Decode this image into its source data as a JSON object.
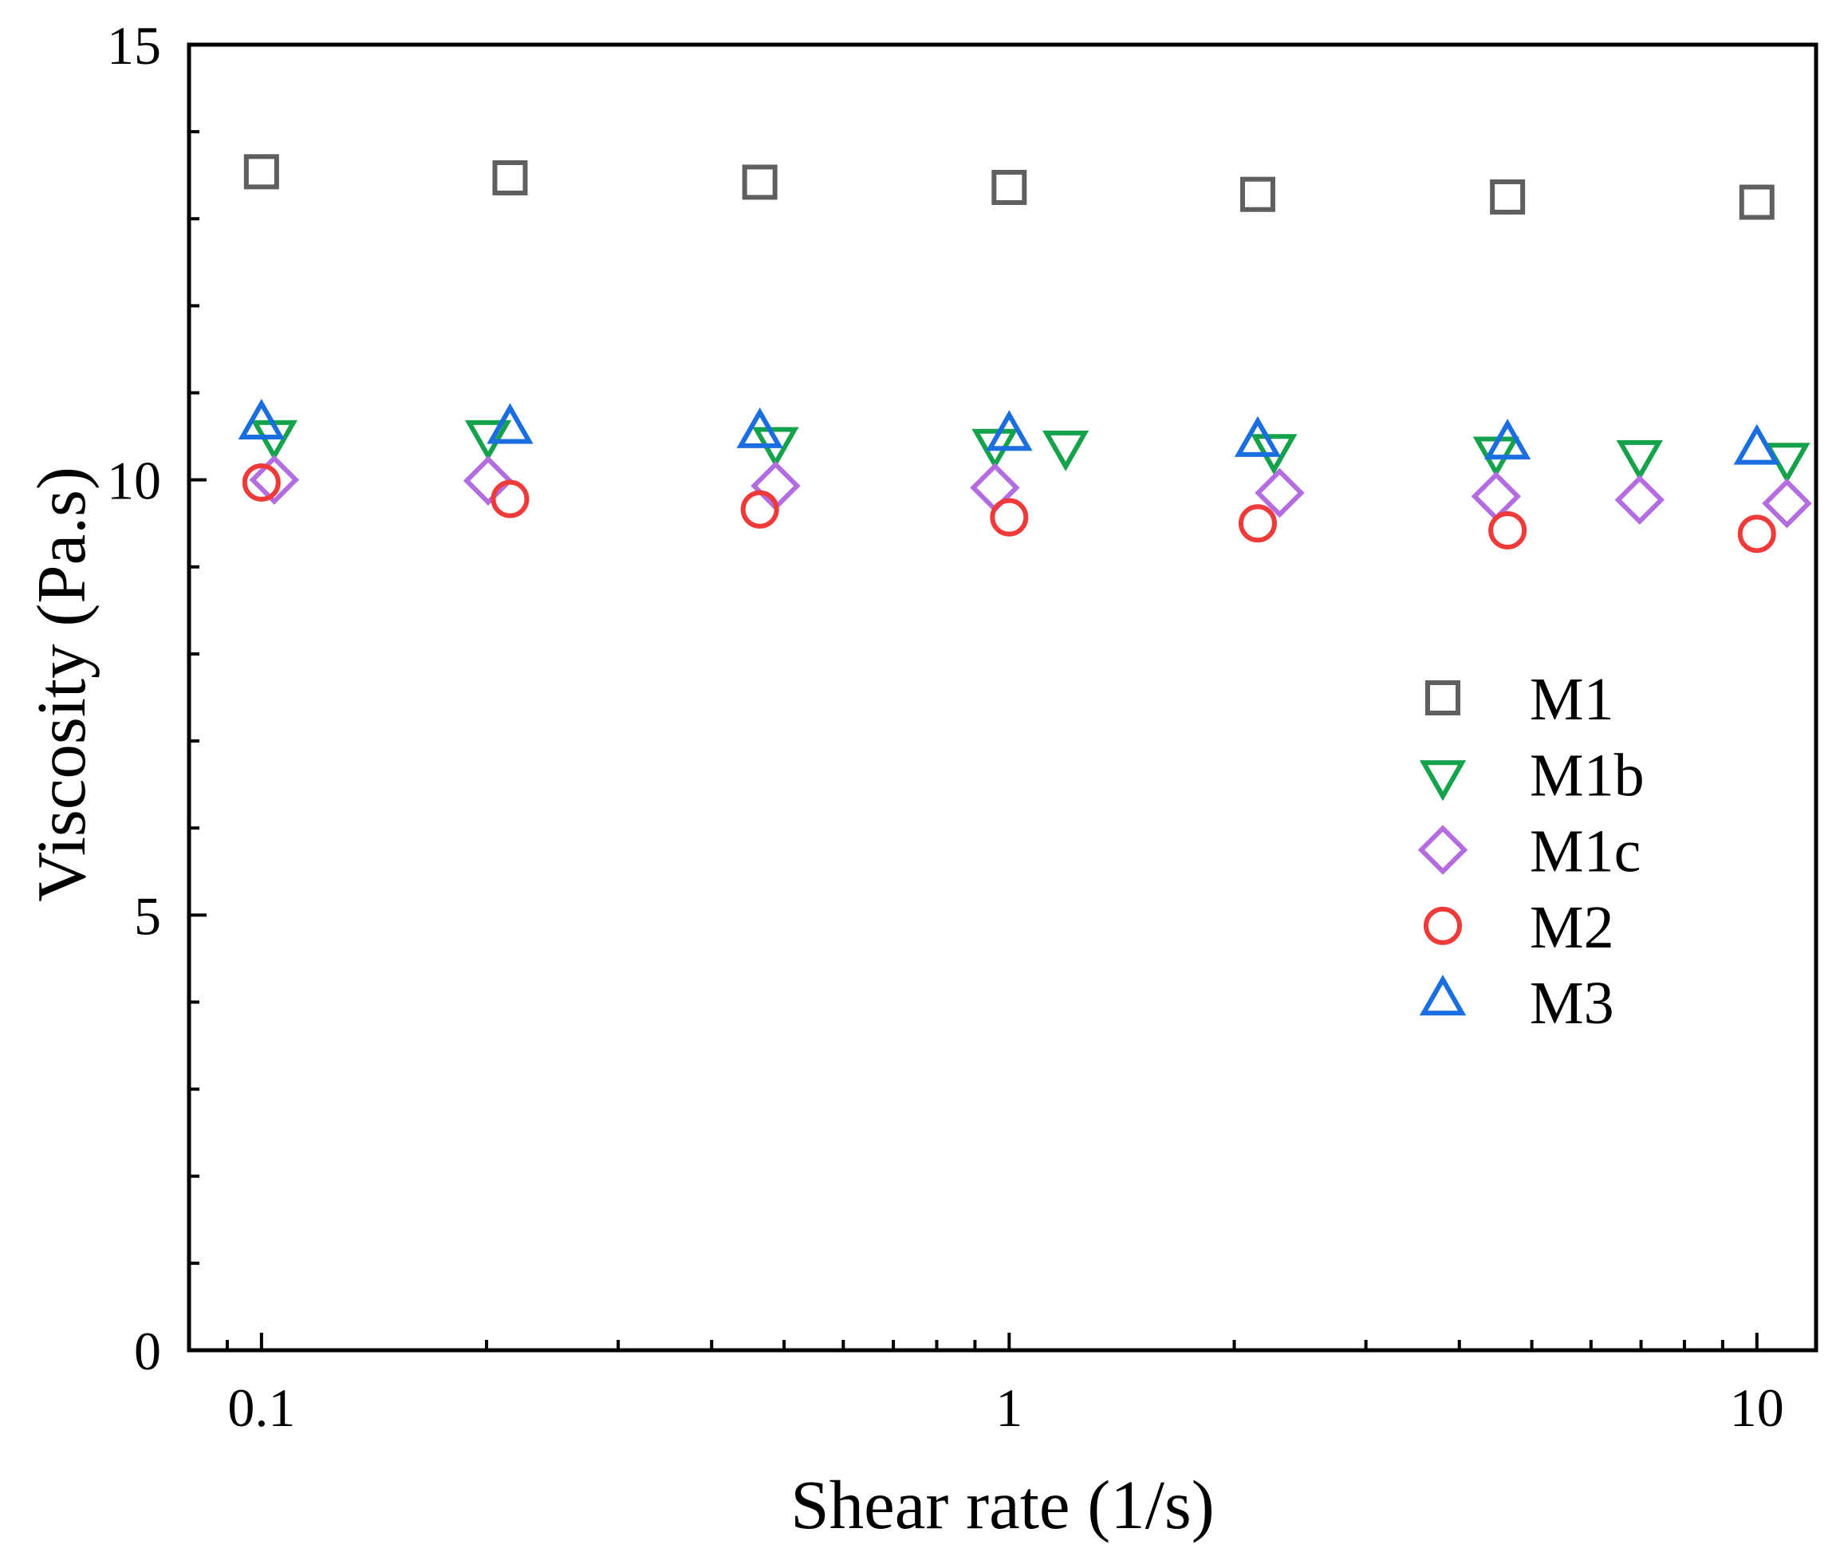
{
  "chart_data": {
    "type": "scatter",
    "xlabel": "Shear rate (1/s)",
    "ylabel": "Viscosity (Pa.s)",
    "xscale": "log",
    "xlim": [
      0.08,
      12
    ],
    "ylim": [
      0,
      15
    ],
    "xticks": [
      0.1,
      1,
      10
    ],
    "xtick_labels": [
      "0.1",
      "1",
      "10"
    ],
    "yticks": [
      0,
      5,
      10,
      15
    ],
    "ytick_labels": [
      "0",
      "5",
      "10",
      "15"
    ],
    "yminor_step": 1,
    "grid": false,
    "legend_position": "center-right",
    "series": [
      {
        "name": "M1",
        "marker": "square",
        "color": "#5f5f5f",
        "x": [
          0.1,
          0.215,
          0.464,
          1,
          2.15,
          4.64,
          10
        ],
        "y": [
          13.54,
          13.47,
          13.42,
          13.36,
          13.28,
          13.25,
          13.19
        ]
      },
      {
        "name": "M1b",
        "marker": "triangle-down",
        "color": "#14a24b",
        "x": [
          0.104,
          0.201,
          0.487,
          0.957,
          1.19,
          2.26,
          4.48,
          6.97,
          10.97
        ],
        "y": [
          10.53,
          10.53,
          10.45,
          10.43,
          10.41,
          10.37,
          10.34,
          10.3,
          10.27
        ]
      },
      {
        "name": "M1c",
        "marker": "diamond",
        "color": "#b36de0",
        "x": [
          0.104,
          0.201,
          0.487,
          0.957,
          2.3,
          4.48,
          6.97,
          10.97
        ],
        "y": [
          10.0,
          9.99,
          9.93,
          9.91,
          9.85,
          9.81,
          9.77,
          9.73
        ]
      },
      {
        "name": "M2",
        "marker": "circle",
        "color": "#f03a3a",
        "x": [
          0.1,
          0.215,
          0.464,
          1,
          2.15,
          4.64,
          10
        ],
        "y": [
          9.97,
          9.78,
          9.66,
          9.57,
          9.5,
          9.42,
          9.38
        ]
      },
      {
        "name": "M3",
        "marker": "triangle-up",
        "color": "#1b6ee0",
        "x": [
          0.1,
          0.215,
          0.464,
          1,
          2.15,
          4.64,
          10
        ],
        "y": [
          10.62,
          10.57,
          10.52,
          10.49,
          10.42,
          10.39,
          10.33
        ]
      }
    ]
  }
}
